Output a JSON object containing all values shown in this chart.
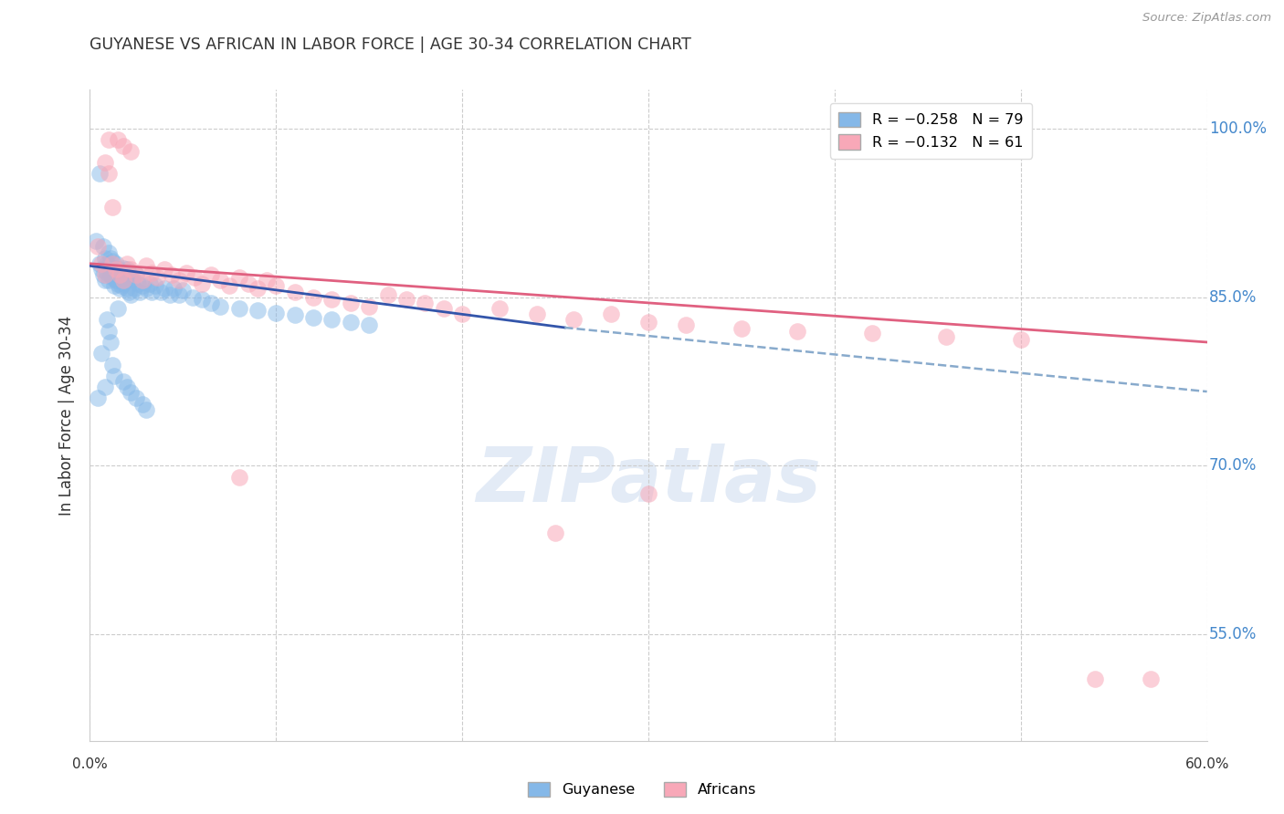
{
  "title": "GUYANESE VS AFRICAN IN LABOR FORCE | AGE 30-34 CORRELATION CHART",
  "source": "Source: ZipAtlas.com",
  "ylabel": "In Labor Force | Age 30-34",
  "xlim": [
    0.0,
    0.6
  ],
  "ylim": [
    0.455,
    1.035
  ],
  "yticks": [
    0.55,
    0.7,
    0.85,
    1.0
  ],
  "ytick_labels": [
    "55.0%",
    "70.0%",
    "85.0%",
    "100.0%"
  ],
  "guyanese_color": "#85b8e8",
  "african_color": "#f8a8b8",
  "trend_guyanese_color": "#3355aa",
  "trend_african_color": "#e06080",
  "trend_dashed_color": "#88aacc",
  "guyanese_x": [
    0.003,
    0.005,
    0.005,
    0.006,
    0.007,
    0.007,
    0.008,
    0.008,
    0.009,
    0.009,
    0.01,
    0.01,
    0.01,
    0.011,
    0.011,
    0.012,
    0.012,
    0.013,
    0.013,
    0.014,
    0.014,
    0.015,
    0.015,
    0.016,
    0.016,
    0.017,
    0.017,
    0.018,
    0.018,
    0.019,
    0.02,
    0.02,
    0.021,
    0.021,
    0.022,
    0.022,
    0.023,
    0.024,
    0.025,
    0.026,
    0.027,
    0.028,
    0.03,
    0.032,
    0.033,
    0.035,
    0.038,
    0.04,
    0.043,
    0.045,
    0.048,
    0.05,
    0.055,
    0.06,
    0.065,
    0.07,
    0.08,
    0.09,
    0.1,
    0.11,
    0.12,
    0.13,
    0.14,
    0.15,
    0.004,
    0.006,
    0.008,
    0.009,
    0.01,
    0.011,
    0.012,
    0.013,
    0.015,
    0.018,
    0.02,
    0.022,
    0.025,
    0.028,
    0.03
  ],
  "guyanese_y": [
    0.9,
    0.96,
    0.88,
    0.875,
    0.87,
    0.895,
    0.885,
    0.865,
    0.88,
    0.872,
    0.89,
    0.878,
    0.865,
    0.885,
    0.87,
    0.882,
    0.868,
    0.876,
    0.86,
    0.88,
    0.865,
    0.875,
    0.862,
    0.87,
    0.858,
    0.873,
    0.86,
    0.876,
    0.862,
    0.87,
    0.875,
    0.858,
    0.872,
    0.855,
    0.868,
    0.852,
    0.866,
    0.858,
    0.87,
    0.862,
    0.855,
    0.86,
    0.858,
    0.862,
    0.855,
    0.86,
    0.855,
    0.858,
    0.852,
    0.858,
    0.852,
    0.856,
    0.85,
    0.848,
    0.845,
    0.842,
    0.84,
    0.838,
    0.836,
    0.834,
    0.832,
    0.83,
    0.828,
    0.825,
    0.76,
    0.8,
    0.77,
    0.83,
    0.82,
    0.81,
    0.79,
    0.78,
    0.84,
    0.775,
    0.77,
    0.765,
    0.76,
    0.755,
    0.75
  ],
  "african_x": [
    0.004,
    0.006,
    0.008,
    0.01,
    0.012,
    0.014,
    0.016,
    0.018,
    0.02,
    0.022,
    0.025,
    0.028,
    0.03,
    0.033,
    0.036,
    0.04,
    0.044,
    0.048,
    0.052,
    0.056,
    0.06,
    0.065,
    0.07,
    0.075,
    0.08,
    0.085,
    0.09,
    0.095,
    0.1,
    0.11,
    0.12,
    0.13,
    0.14,
    0.15,
    0.16,
    0.17,
    0.18,
    0.19,
    0.2,
    0.22,
    0.24,
    0.26,
    0.28,
    0.3,
    0.32,
    0.35,
    0.38,
    0.42,
    0.46,
    0.5,
    0.008,
    0.01,
    0.012,
    0.015,
    0.018,
    0.022,
    0.08,
    0.3,
    0.54,
    0.57,
    0.25
  ],
  "african_y": [
    0.895,
    0.88,
    0.87,
    0.99,
    0.88,
    0.875,
    0.87,
    0.865,
    0.88,
    0.875,
    0.87,
    0.865,
    0.878,
    0.872,
    0.868,
    0.875,
    0.87,
    0.865,
    0.872,
    0.868,
    0.862,
    0.87,
    0.865,
    0.86,
    0.868,
    0.862,
    0.858,
    0.865,
    0.86,
    0.855,
    0.85,
    0.848,
    0.845,
    0.842,
    0.852,
    0.848,
    0.845,
    0.84,
    0.835,
    0.84,
    0.835,
    0.83,
    0.835,
    0.828,
    0.825,
    0.822,
    0.82,
    0.818,
    0.815,
    0.812,
    0.97,
    0.96,
    0.93,
    0.99,
    0.985,
    0.98,
    0.69,
    0.675,
    0.51,
    0.51,
    0.64
  ],
  "trend_blue_x0": 0.0,
  "trend_blue_y0": 0.878,
  "trend_blue_x1": 0.255,
  "trend_blue_y1": 0.823,
  "trend_dash_x0": 0.255,
  "trend_dash_y0": 0.823,
  "trend_dash_x1": 0.6,
  "trend_dash_y1": 0.766,
  "trend_pink_x0": 0.0,
  "trend_pink_y0": 0.88,
  "trend_pink_x1": 0.6,
  "trend_pink_y1": 0.81
}
